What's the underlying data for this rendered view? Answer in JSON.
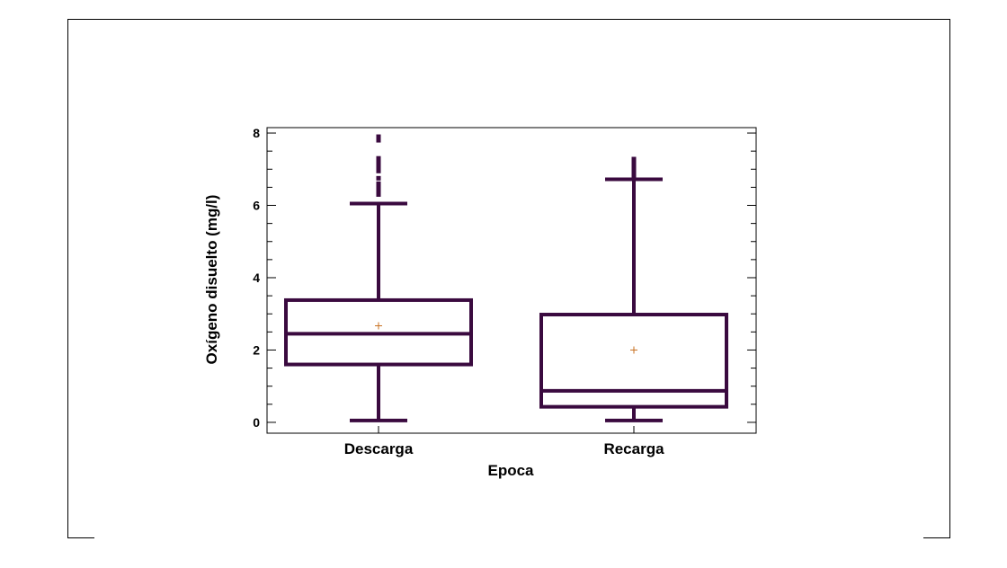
{
  "chart_data": {
    "type": "boxplot",
    "xlabel": "Epoca",
    "ylabel": "Oxígeno disuelto (mg/l)",
    "ylim": [
      -0.3,
      8.15
    ],
    "yticks": [
      0,
      2,
      4,
      6,
      8
    ],
    "grid": false,
    "color": "#3a0a3f",
    "mean_marker_color": "#c87020",
    "categories": [
      "Descarga",
      "Recarga"
    ],
    "series": [
      {
        "category": "Descarga",
        "whisker_low": 0.05,
        "q1": 1.6,
        "median": 2.45,
        "q3": 3.38,
        "whisker_high": 6.05,
        "mean": 2.67,
        "outliers": [
          6.3,
          6.4,
          6.5,
          6.6,
          6.75,
          6.95,
          7.05,
          7.15,
          7.25,
          7.3,
          7.8,
          7.9
        ]
      },
      {
        "category": "Recarga",
        "whisker_low": 0.05,
        "q1": 0.43,
        "median": 0.87,
        "q3": 2.98,
        "whisker_high": 6.72,
        "mean": 2.0,
        "outliers": [
          6.8,
          6.9,
          7.0,
          7.1,
          7.2,
          7.28
        ]
      }
    ]
  }
}
